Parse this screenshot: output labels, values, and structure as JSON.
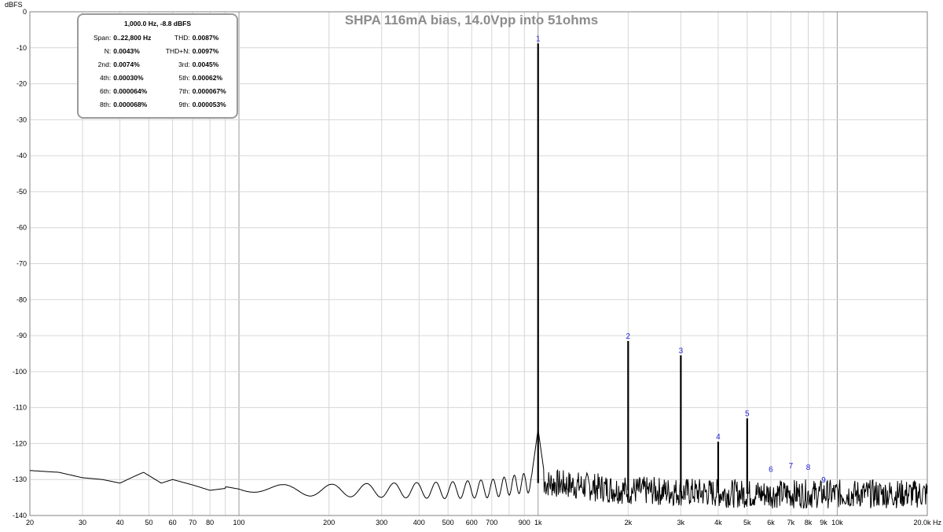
{
  "chart_data": {
    "type": "line",
    "title": "SHPA 116mA bias, 14.0Vpp into 51ohms",
    "ylabel": "dBFS",
    "xlabel": "Hz",
    "x_scale": "log",
    "xlim": [
      20,
      20000
    ],
    "ylim": [
      -140,
      0
    ],
    "grid": true,
    "y_ticks": [
      "0",
      "-10",
      "-20",
      "-30",
      "-40",
      "-50",
      "-60",
      "-70",
      "-80",
      "-90",
      "-100",
      "-110",
      "-120",
      "-130",
      "-140"
    ],
    "x_ticks": [
      {
        "v": 20,
        "label": "20"
      },
      {
        "v": 30,
        "label": "30"
      },
      {
        "v": 40,
        "label": "40"
      },
      {
        "v": 50,
        "label": "50"
      },
      {
        "v": 60,
        "label": "60"
      },
      {
        "v": 70,
        "label": "70"
      },
      {
        "v": 80,
        "label": "80"
      },
      {
        "v": 100,
        "label": "100"
      },
      {
        "v": 200,
        "label": "200"
      },
      {
        "v": 300,
        "label": "300"
      },
      {
        "v": 400,
        "label": "400"
      },
      {
        "v": 500,
        "label": "500"
      },
      {
        "v": 600,
        "label": "600"
      },
      {
        "v": 700,
        "label": "700"
      },
      {
        "v": 900,
        "label": "900"
      },
      {
        "v": 1000,
        "label": "1k"
      },
      {
        "v": 2000,
        "label": "2k"
      },
      {
        "v": 3000,
        "label": "3k"
      },
      {
        "v": 4000,
        "label": "4k"
      },
      {
        "v": 5000,
        "label": "5k"
      },
      {
        "v": 6000,
        "label": "6k"
      },
      {
        "v": 7000,
        "label": "7k"
      },
      {
        "v": 8000,
        "label": "8k"
      },
      {
        "v": 9000,
        "label": "9k"
      },
      {
        "v": 10000,
        "label": "10k"
      },
      {
        "v": 20000,
        "label": "20.0k Hz"
      }
    ],
    "series": [
      {
        "color": "#000000",
        "noise_floor": [
          [
            20,
            -127.5
          ],
          [
            25,
            -128
          ],
          [
            30,
            -129.5
          ],
          [
            35,
            -130
          ],
          [
            40,
            -131
          ],
          [
            45,
            -129
          ],
          [
            48,
            -128
          ],
          [
            55,
            -131
          ],
          [
            60,
            -130
          ],
          [
            70,
            -131.5
          ],
          [
            80,
            -133
          ],
          [
            100,
            -132
          ],
          [
            150,
            -133
          ],
          [
            300,
            -133
          ],
          [
            500,
            -133
          ],
          [
            700,
            -132.5
          ],
          [
            900,
            -131
          ],
          [
            1100,
            -131
          ],
          [
            2000,
            -133
          ],
          [
            5000,
            -134
          ],
          [
            10000,
            -134
          ],
          [
            20000,
            -134
          ]
        ],
        "peaks": [
          {
            "x": 1000,
            "y": -8.8
          },
          {
            "x": 2000,
            "y": -91.5
          },
          {
            "x": 3000,
            "y": -95.5
          },
          {
            "x": 4000,
            "y": -119.5
          },
          {
            "x": 5000,
            "y": -113
          }
        ]
      }
    ],
    "harmonic_markers": [
      {
        "label": "1",
        "x": 1000,
        "y": -8.8
      },
      {
        "label": "2",
        "x": 2000,
        "y": -91.5
      },
      {
        "label": "3",
        "x": 3000,
        "y": -95.5
      },
      {
        "label": "4",
        "x": 4000,
        "y": -119.5
      },
      {
        "label": "5",
        "x": 5000,
        "y": -113
      },
      {
        "label": "6",
        "x": 6000,
        "y": -128.5
      },
      {
        "label": "7",
        "x": 7000,
        "y": -127.5
      },
      {
        "label": "8",
        "x": 8000,
        "y": -128
      },
      {
        "label": "9",
        "x": 9000,
        "y": -131.5
      }
    ]
  },
  "info_box": {
    "header": "1,000.0 Hz, -8.8 dBFS",
    "rows": [
      [
        {
          "label": "Span:",
          "value": "0..22,800 Hz"
        },
        {
          "label": "THD:",
          "value": "0.0087%"
        }
      ],
      [
        {
          "label": "N:",
          "value": "0.0043%"
        },
        {
          "label": "THD+N:",
          "value": "0.0097%"
        }
      ],
      [
        {
          "label": "2nd:",
          "value": "0.0074%"
        },
        {
          "label": "3rd:",
          "value": "0.0045%"
        }
      ],
      [
        {
          "label": "4th:",
          "value": "0.00030%"
        },
        {
          "label": "5th:",
          "value": "0.00062%"
        }
      ],
      [
        {
          "label": "6th:",
          "value": "0.000064%"
        },
        {
          "label": "7th:",
          "value": "0.000067%"
        }
      ],
      [
        {
          "label": "8th:",
          "value": "0.000068%"
        },
        {
          "label": "9th:",
          "value": "0.000053%"
        }
      ]
    ]
  }
}
